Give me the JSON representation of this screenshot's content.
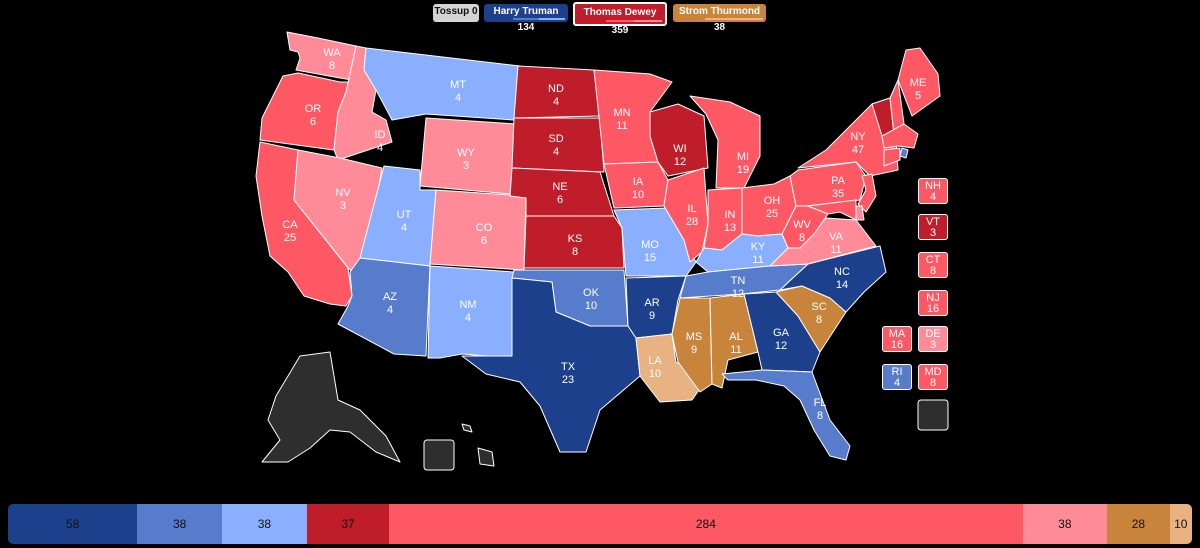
{
  "colors": {
    "truman_solid": "#1c408c",
    "truman_likely": "#577ccc",
    "truman_lean": "#8aafff",
    "dewey_solid": "#bf1d29",
    "dewey_likely": "#ff5865",
    "dewey_lean": "#ff8b98",
    "thurmond_likely": "#c8843a",
    "thurmond_lean": "#e8b283",
    "tossup": "#2e2e2e",
    "tossup_btn": "#d4d4d4"
  },
  "candidates": {
    "tossup": {
      "label": "Tossup 0"
    },
    "truman": {
      "label": "Harry Truman 134"
    },
    "dewey": {
      "label": "Thomas Dewey 359"
    },
    "thurmond": {
      "label": "Strom Thurmond 38"
    }
  },
  "states": [
    {
      "abbr": "WA",
      "ev": "8",
      "rating": "dewey_lean"
    },
    {
      "abbr": "OR",
      "ev": "6",
      "rating": "dewey_likely"
    },
    {
      "abbr": "CA",
      "ev": "25",
      "rating": "dewey_likely"
    },
    {
      "abbr": "ID",
      "ev": "4",
      "rating": "dewey_lean"
    },
    {
      "abbr": "NV",
      "ev": "3",
      "rating": "dewey_lean"
    },
    {
      "abbr": "MT",
      "ev": "4",
      "rating": "truman_lean"
    },
    {
      "abbr": "WY",
      "ev": "3",
      "rating": "dewey_lean"
    },
    {
      "abbr": "UT",
      "ev": "4",
      "rating": "truman_lean"
    },
    {
      "abbr": "CO",
      "ev": "6",
      "rating": "dewey_lean"
    },
    {
      "abbr": "AZ",
      "ev": "4",
      "rating": "truman_likely"
    },
    {
      "abbr": "NM",
      "ev": "4",
      "rating": "truman_lean"
    },
    {
      "abbr": "ND",
      "ev": "4",
      "rating": "dewey_solid"
    },
    {
      "abbr": "SD",
      "ev": "4",
      "rating": "dewey_solid"
    },
    {
      "abbr": "NE",
      "ev": "6",
      "rating": "dewey_solid"
    },
    {
      "abbr": "KS",
      "ev": "8",
      "rating": "dewey_solid"
    },
    {
      "abbr": "OK",
      "ev": "10",
      "rating": "truman_likely"
    },
    {
      "abbr": "TX",
      "ev": "23",
      "rating": "truman_solid"
    },
    {
      "abbr": "MN",
      "ev": "11",
      "rating": "dewey_likely"
    },
    {
      "abbr": "IA",
      "ev": "10",
      "rating": "dewey_likely"
    },
    {
      "abbr": "MO",
      "ev": "15",
      "rating": "truman_lean"
    },
    {
      "abbr": "AR",
      "ev": "9",
      "rating": "truman_solid"
    },
    {
      "abbr": "LA",
      "ev": "10",
      "rating": "thurmond_lean"
    },
    {
      "abbr": "WI",
      "ev": "12",
      "rating": "dewey_solid"
    },
    {
      "abbr": "IL",
      "ev": "28",
      "rating": "dewey_likely"
    },
    {
      "abbr": "MI",
      "ev": "19",
      "rating": "dewey_likely"
    },
    {
      "abbr": "IN",
      "ev": "13",
      "rating": "dewey_likely"
    },
    {
      "abbr": "OH",
      "ev": "25",
      "rating": "dewey_likely"
    },
    {
      "abbr": "KY",
      "ev": "11",
      "rating": "truman_lean"
    },
    {
      "abbr": "TN",
      "ev": "12",
      "rating": "truman_likely"
    },
    {
      "abbr": "MS",
      "ev": "9",
      "rating": "thurmond_likely"
    },
    {
      "abbr": "AL",
      "ev": "11",
      "rating": "thurmond_likely"
    },
    {
      "abbr": "GA",
      "ev": "12",
      "rating": "truman_solid"
    },
    {
      "abbr": "FL",
      "ev": "8",
      "rating": "truman_likely"
    },
    {
      "abbr": "SC",
      "ev": "8",
      "rating": "thurmond_likely"
    },
    {
      "abbr": "NC",
      "ev": "14",
      "rating": "truman_solid"
    },
    {
      "abbr": "VA",
      "ev": "11",
      "rating": "dewey_lean"
    },
    {
      "abbr": "WV",
      "ev": "8",
      "rating": "dewey_likely"
    },
    {
      "abbr": "PA",
      "ev": "35",
      "rating": "dewey_likely"
    },
    {
      "abbr": "NY",
      "ev": "47",
      "rating": "dewey_likely"
    },
    {
      "abbr": "ME",
      "ev": "5",
      "rating": "dewey_likely"
    }
  ],
  "small_states": [
    {
      "abbr": "NH",
      "ev": "4",
      "rating": "dewey_likely"
    },
    {
      "abbr": "VT",
      "ev": "3",
      "rating": "dewey_solid"
    },
    {
      "abbr": "CT",
      "ev": "8",
      "rating": "dewey_likely"
    },
    {
      "abbr": "NJ",
      "ev": "16",
      "rating": "dewey_likely"
    },
    {
      "abbr": "MA",
      "ev": "16",
      "rating": "dewey_likely"
    },
    {
      "abbr": "DE",
      "ev": "3",
      "rating": "dewey_lean"
    },
    {
      "abbr": "RI",
      "ev": "4",
      "rating": "truman_likely"
    },
    {
      "abbr": "MD",
      "ev": "8",
      "rating": "dewey_likely"
    }
  ],
  "summary_bar": [
    {
      "value": 58,
      "rating": "truman_solid"
    },
    {
      "value": 38,
      "rating": "truman_likely"
    },
    {
      "value": 38,
      "rating": "truman_lean"
    },
    {
      "value": 37,
      "rating": "dewey_solid"
    },
    {
      "value": 284,
      "rating": "dewey_likely"
    },
    {
      "value": 38,
      "rating": "dewey_lean"
    },
    {
      "value": 28,
      "rating": "thurmond_likely"
    },
    {
      "value": 10,
      "rating": "thurmond_lean"
    }
  ]
}
